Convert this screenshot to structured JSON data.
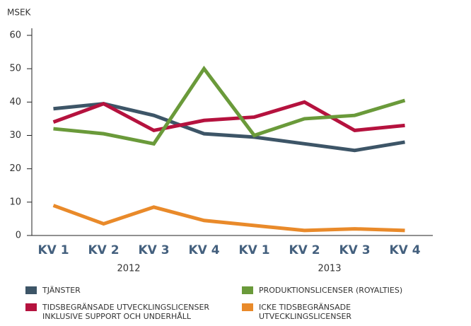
{
  "chart_data": {
    "type": "line",
    "y_label": "MSEK",
    "categories": [
      "KV 1",
      "KV 2",
      "KV 3",
      "KV 4",
      "KV 1",
      "KV 2",
      "KV 3",
      "KV 4"
    ],
    "groups": [
      "2012",
      "2013"
    ],
    "ylim": [
      0,
      60
    ],
    "yticks": [
      0,
      10,
      20,
      30,
      40,
      50,
      60
    ],
    "series": [
      {
        "name": "TJÄNSTER",
        "color": "#3d5567",
        "values": [
          38,
          39.5,
          36,
          30.5,
          29.5,
          27.5,
          25.5,
          28
        ]
      },
      {
        "name": "TIDSBEGRÄNSADE UTVECKLINGSLICENSER INKLUSIVE SUPPORT OCH UNDERHÅLL",
        "color": "#b5123e",
        "values": [
          34,
          39.5,
          31.5,
          34.5,
          35.5,
          40,
          31.5,
          33
        ]
      },
      {
        "name": "PRODUKTIONSLICENSER (ROYALTIES)",
        "color": "#6a9a3a",
        "values": [
          32,
          30.5,
          27.5,
          50,
          30,
          35,
          36,
          40.5
        ]
      },
      {
        "name": "ICKE TIDSBEGRÄNSADE UTVECKLINGSLICENSER",
        "color": "#e98a2a",
        "values": [
          9,
          3.5,
          8.5,
          4.5,
          3,
          1.5,
          2,
          1.5
        ]
      }
    ]
  }
}
